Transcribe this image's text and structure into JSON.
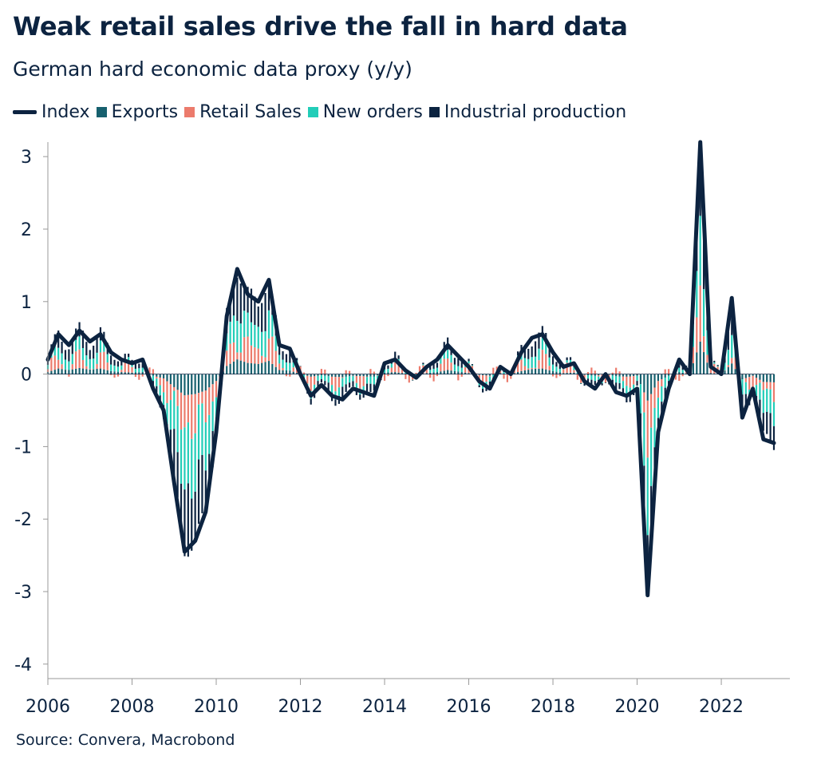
{
  "title": "Weak retail sales drive the fall in hard data",
  "subtitle": "German hard economic data proxy (y/y)",
  "source": "Source: Convera, Macrobond",
  "legend": [
    {
      "label": "Index",
      "kind": "line",
      "color": "#0c2340"
    },
    {
      "label": "Exports",
      "kind": "box",
      "color": "#17606e"
    },
    {
      "label": "Retail Sales",
      "kind": "box",
      "color": "#ec7b6c"
    },
    {
      "label": "New orders",
      "kind": "box",
      "color": "#22cdb8"
    },
    {
      "label": "Industrial production",
      "kind": "box",
      "color": "#0c2340"
    }
  ],
  "chart_data": {
    "type": "bar",
    "stacked": true,
    "title": "Weak retail sales drive the fall in hard data",
    "subtitle": "German hard economic data proxy (y/y)",
    "xlabel": "",
    "ylabel": "",
    "xlim": [
      "2006-01",
      "2023-04"
    ],
    "ylim": [
      -4.2,
      3.2
    ],
    "yticks": [
      3,
      2,
      1,
      0,
      -1,
      -2,
      -3,
      -4
    ],
    "ytick_labels": [
      "3",
      "2",
      "1",
      "0",
      "-1",
      "-2",
      "-3",
      "-4"
    ],
    "xticks": [
      "2006",
      "2008",
      "2010",
      "2012",
      "2014",
      "2016",
      "2018",
      "2020",
      "2022"
    ],
    "grid": false,
    "legend_position": "top",
    "line": {
      "name": "Index",
      "points": [
        [
          "2006-01",
          0.2
        ],
        [
          "2006-04",
          0.55
        ],
        [
          "2006-07",
          0.4
        ],
        [
          "2006-10",
          0.6
        ],
        [
          "2007-01",
          0.45
        ],
        [
          "2007-04",
          0.55
        ],
        [
          "2007-07",
          0.3
        ],
        [
          "2007-10",
          0.2
        ],
        [
          "2008-01",
          0.15
        ],
        [
          "2008-04",
          0.2
        ],
        [
          "2008-07",
          -0.2
        ],
        [
          "2008-10",
          -0.5
        ],
        [
          "2009-01",
          -1.5
        ],
        [
          "2009-04",
          -2.45
        ],
        [
          "2009-07",
          -2.3
        ],
        [
          "2009-10",
          -1.9
        ],
        [
          "2010-01",
          -0.8
        ],
        [
          "2010-04",
          0.8
        ],
        [
          "2010-07",
          1.45
        ],
        [
          "2010-10",
          1.1
        ],
        [
          "2011-01",
          1.0
        ],
        [
          "2011-04",
          1.3
        ],
        [
          "2011-07",
          0.4
        ],
        [
          "2011-10",
          0.35
        ],
        [
          "2012-01",
          0.0
        ],
        [
          "2012-04",
          -0.3
        ],
        [
          "2012-07",
          -0.15
        ],
        [
          "2012-10",
          -0.3
        ],
        [
          "2013-01",
          -0.35
        ],
        [
          "2013-04",
          -0.2
        ],
        [
          "2013-07",
          -0.25
        ],
        [
          "2013-10",
          -0.3
        ],
        [
          "2014-01",
          0.15
        ],
        [
          "2014-04",
          0.2
        ],
        [
          "2014-07",
          0.05
        ],
        [
          "2014-10",
          -0.05
        ],
        [
          "2015-01",
          0.1
        ],
        [
          "2015-04",
          0.2
        ],
        [
          "2015-07",
          0.4
        ],
        [
          "2015-10",
          0.25
        ],
        [
          "2016-01",
          0.1
        ],
        [
          "2016-04",
          -0.1
        ],
        [
          "2016-07",
          -0.2
        ],
        [
          "2016-10",
          0.1
        ],
        [
          "2017-01",
          0.0
        ],
        [
          "2017-04",
          0.3
        ],
        [
          "2017-07",
          0.5
        ],
        [
          "2017-10",
          0.55
        ],
        [
          "2018-01",
          0.3
        ],
        [
          "2018-04",
          0.1
        ],
        [
          "2018-07",
          0.15
        ],
        [
          "2018-10",
          -0.1
        ],
        [
          "2019-01",
          -0.2
        ],
        [
          "2019-04",
          0.0
        ],
        [
          "2019-07",
          -0.25
        ],
        [
          "2019-10",
          -0.3
        ],
        [
          "2020-01",
          -0.2
        ],
        [
          "2020-04",
          -3.05
        ],
        [
          "2020-07",
          -0.8
        ],
        [
          "2020-10",
          -0.2
        ],
        [
          "2021-01",
          0.2
        ],
        [
          "2021-04",
          0.0
        ],
        [
          "2021-07",
          3.2
        ],
        [
          "2021-10",
          0.1
        ],
        [
          "2022-01",
          0.0
        ],
        [
          "2022-04",
          1.05
        ],
        [
          "2022-07",
          -0.6
        ],
        [
          "2022-10",
          -0.2
        ],
        [
          "2023-01",
          -0.9
        ],
        [
          "2023-04",
          -0.95
        ]
      ]
    },
    "series": [
      {
        "name": "Exports"
      },
      {
        "name": "Retail Sales"
      },
      {
        "name": "New orders"
      },
      {
        "name": "Industrial production"
      }
    ]
  }
}
